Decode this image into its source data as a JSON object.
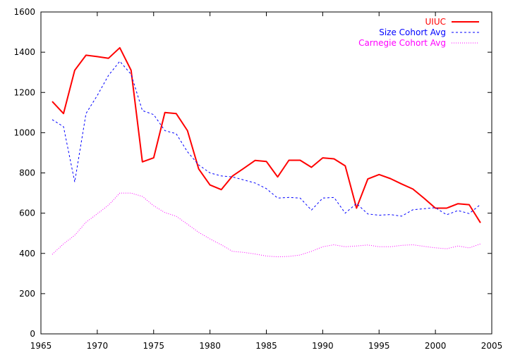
{
  "chart_data": {
    "type": "line",
    "title": "",
    "xlabel": "",
    "ylabel": "",
    "xlim": [
      1965,
      2005
    ],
    "ylim": [
      0,
      1600
    ],
    "x_ticks": [
      1965,
      1970,
      1975,
      1980,
      1985,
      1990,
      1995,
      2000,
      2005
    ],
    "y_ticks": [
      0,
      200,
      400,
      600,
      800,
      1000,
      1200,
      1400,
      1600
    ],
    "x_tick_labels": [
      "1965",
      "1970",
      "1975",
      "1980",
      "1985",
      "1990",
      "1995",
      "2000",
      "2005"
    ],
    "y_tick_labels": [
      "0",
      "200",
      "400",
      "600",
      "800",
      "1000",
      "1200",
      "1400",
      "1600"
    ],
    "grid": false,
    "legend_position": "top-right",
    "x": [
      1966,
      1967,
      1968,
      1969,
      1970,
      1971,
      1972,
      1973,
      1974,
      1975,
      1976,
      1977,
      1978,
      1979,
      1980,
      1981,
      1982,
      1983,
      1984,
      1985,
      1986,
      1987,
      1988,
      1989,
      1990,
      1991,
      1992,
      1993,
      1994,
      1995,
      1996,
      1997,
      1998,
      1999,
      2000,
      2001,
      2002,
      2003,
      2004
    ],
    "series": [
      {
        "name": "UIUC",
        "color": "#ff0000",
        "style": "solid",
        "values": [
          1155,
          1095,
          1310,
          1385,
          1378,
          1370,
          1422,
          1310,
          855,
          875,
          1100,
          1095,
          1010,
          820,
          740,
          717,
          785,
          823,
          862,
          857,
          780,
          863,
          863,
          828,
          875,
          870,
          835,
          625,
          770,
          792,
          772,
          745,
          720,
          674,
          625,
          625,
          647,
          642,
          552
        ]
      },
      {
        "name": "Size Cohort Avg",
        "color": "#0000ff",
        "style": "dashed",
        "values": [
          1065,
          1030,
          755,
          1095,
          1185,
          1285,
          1355,
          1290,
          1110,
          1090,
          1010,
          995,
          905,
          840,
          800,
          785,
          780,
          765,
          750,
          722,
          675,
          678,
          675,
          615,
          675,
          678,
          600,
          648,
          596,
          590,
          593,
          585,
          617,
          622,
          627,
          592,
          613,
          598,
          643
        ]
      },
      {
        "name": "Carnegie Cohort Avg",
        "color": "#ff00ff",
        "style": "dotted",
        "values": [
          395,
          447,
          490,
          555,
          597,
          640,
          700,
          700,
          683,
          637,
          603,
          585,
          545,
          505,
          472,
          443,
          410,
          405,
          397,
          387,
          383,
          385,
          392,
          410,
          433,
          443,
          433,
          437,
          442,
          433,
          433,
          440,
          443,
          435,
          428,
          423,
          437,
          427,
          447
        ]
      }
    ]
  }
}
